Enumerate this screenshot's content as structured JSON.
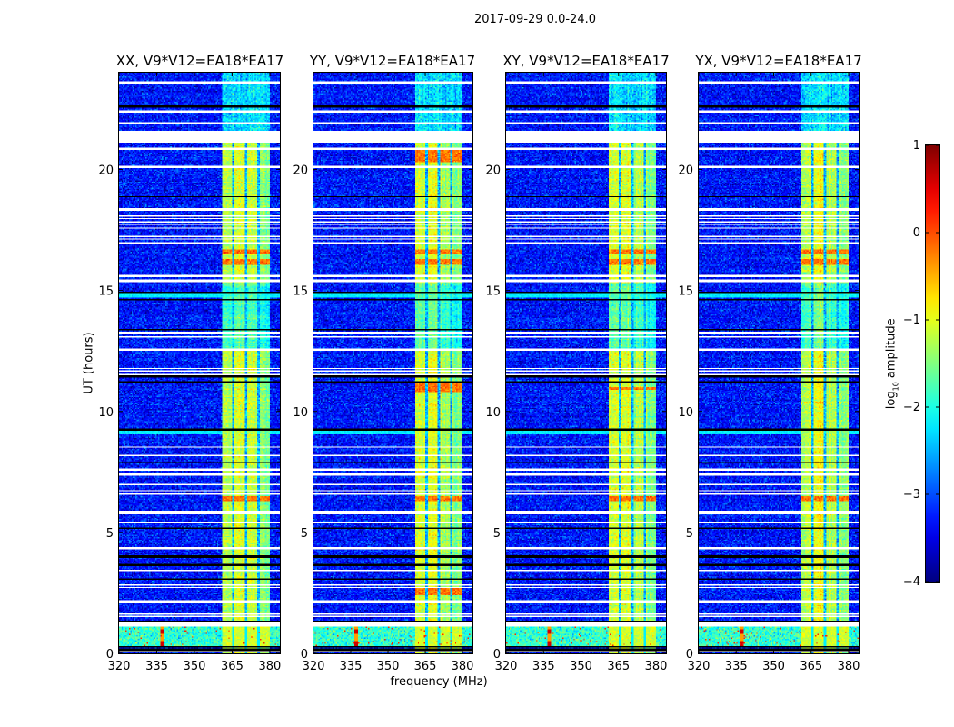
{
  "suptitle": "2017-09-29 0.0-24.0",
  "chart_data": {
    "type": "heatmap",
    "title": "2017-09-29 0.0-24.0",
    "xlabel": "frequency (MHz)",
    "ylabel": "UT (hours)",
    "xlim": [
      320,
      384
    ],
    "ylim": [
      0,
      24
    ],
    "xticks": [
      320,
      335,
      350,
      365,
      380
    ],
    "yticks": [
      0,
      5,
      10,
      15,
      20
    ],
    "panels": [
      {
        "title": "XX, V9*V12=EA18*EA17",
        "extra_orange_hours": []
      },
      {
        "title": "YY, V9*V12=EA18*EA17",
        "extra_orange_hours": [
          [
            10.8,
            11.2
          ],
          [
            2.4,
            2.7
          ],
          [
            20.3,
            20.8
          ]
        ]
      },
      {
        "title": "XY, V9*V12=EA18*EA17",
        "extra_orange_hours": [
          [
            10.9,
            11.0
          ]
        ]
      },
      {
        "title": "YX, V9*V12=EA18*EA17",
        "extra_orange_hours": []
      }
    ],
    "colorbar": {
      "label_main": "log",
      "label_sub": "10",
      "label_rest": " amplitude",
      "range": [
        -4,
        1
      ],
      "ticks": [
        1,
        0,
        -1,
        -2,
        -3,
        -4
      ],
      "colormap": "jet"
    },
    "background_level": -3.3,
    "band": {
      "range_mhz": [
        360.8,
        380.2
      ],
      "level": -1.2,
      "notches_mhz": [
        365.7,
        370.5,
        375.4
      ],
      "top_hour": 21.1
    },
    "flagged_white_hours": [
      [
        23.55,
        23.65
      ],
      [
        22.35,
        22.45
      ],
      [
        21.85,
        21.95
      ],
      [
        21.1,
        21.6
      ],
      [
        20.8,
        20.9
      ],
      [
        20.05,
        20.15
      ],
      [
        18.32,
        18.4
      ],
      [
        18.04,
        18.1
      ],
      [
        17.93,
        17.99
      ],
      [
        17.81,
        17.87
      ],
      [
        17.68,
        17.74
      ],
      [
        17.55,
        17.61
      ],
      [
        17.21,
        17.27
      ],
      [
        17.08,
        17.14
      ],
      [
        16.92,
        16.98
      ],
      [
        15.57,
        15.65
      ],
      [
        15.37,
        15.45
      ],
      [
        13.22,
        13.28
      ],
      [
        13.04,
        13.1
      ],
      [
        12.48,
        12.6
      ],
      [
        11.76,
        11.82
      ],
      [
        11.64,
        11.7
      ],
      [
        11.51,
        11.57
      ],
      [
        8.49,
        8.55
      ],
      [
        8.16,
        8.22
      ],
      [
        7.56,
        7.64
      ],
      [
        7.37,
        7.43
      ],
      [
        6.94,
        7.0
      ],
      [
        6.69,
        6.75
      ],
      [
        6.57,
        6.63
      ],
      [
        5.82,
        5.88
      ],
      [
        5.73,
        5.79
      ],
      [
        5.38,
        5.44
      ],
      [
        4.3,
        4.38
      ],
      [
        3.4,
        3.46
      ],
      [
        3.31,
        3.37
      ],
      [
        2.81,
        2.87
      ],
      [
        2.71,
        2.77
      ],
      [
        2.12,
        2.18
      ],
      [
        1.58,
        1.64
      ],
      [
        1.5,
        1.56
      ],
      [
        1.09,
        1.28
      ],
      [
        0.03,
        0.09
      ]
    ],
    "black_line_hours": [
      22.6,
      18.86,
      14.92,
      14.64,
      13.37,
      11.45,
      11.23,
      9.25,
      7.89,
      5.16,
      4.0,
      3.65,
      3.07,
      1.34,
      0.27,
      0.15
    ],
    "cyan_band_hours": [
      [
        14.72,
        14.9
      ],
      [
        9.04,
        9.2
      ]
    ],
    "orange_hours": [
      [
        16.5,
        16.7
      ],
      [
        16.05,
        16.3
      ],
      [
        6.28,
        6.48
      ]
    ],
    "noisy_band_hours": [
      0.3,
      1.08
    ],
    "rfi_spike_mhz": 337.2
  }
}
